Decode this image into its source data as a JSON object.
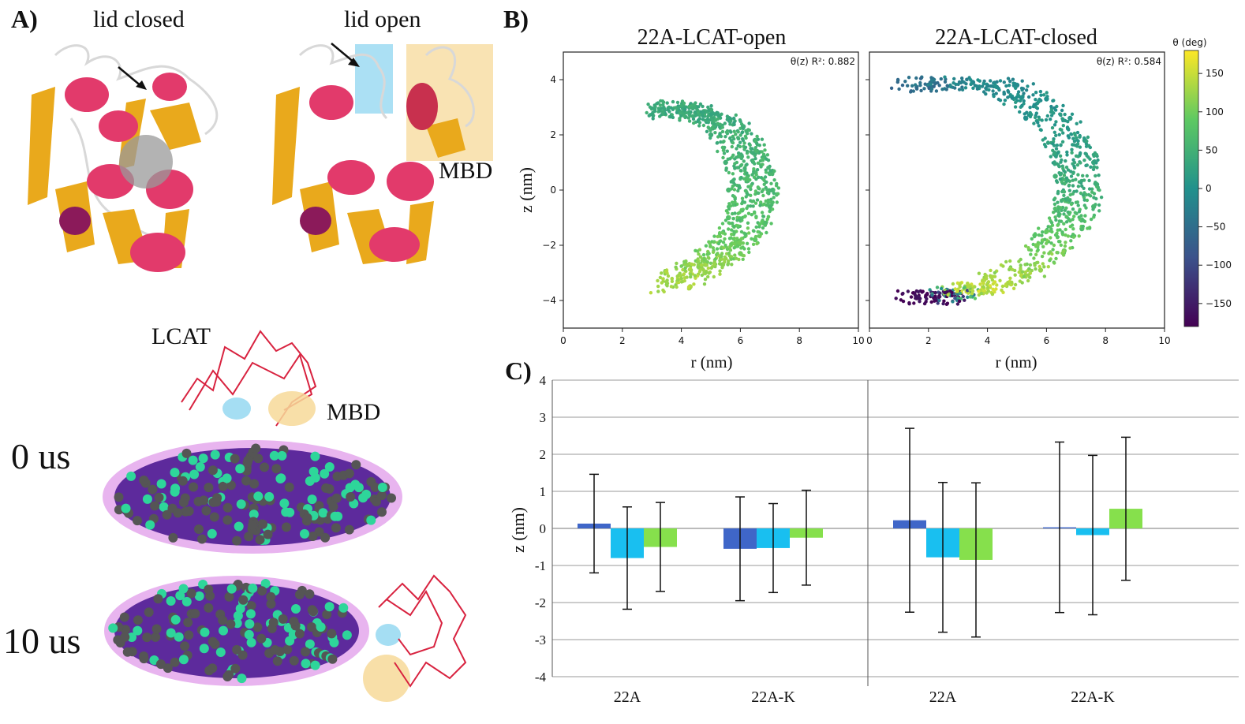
{
  "panel_a": {
    "label": "A)",
    "lid_closed": "lid closed",
    "lid_open": "lid open",
    "mbd_top": "MBD",
    "lcat": "LCAT",
    "mbd_mid": "MBD",
    "time0": "0 us",
    "time10": "10 us",
    "colors": {
      "helix": "#e23a6b",
      "sheet": "#e9a91c",
      "loop": "#d8d8d8",
      "lid": "#8fd6f0",
      "mbd": "#f7d999",
      "lcat_trace": "#d8223f",
      "lipid_purple": "#5d2a9c",
      "bead_green": "#2ed69a",
      "bead_gray": "#555555"
    }
  },
  "panel_b": {
    "label": "B)",
    "colorbar_title": "θ (deg)",
    "colorbar_ticks": [
      "150",
      "100",
      "50",
      "0",
      "−50",
      "−100",
      "−150"
    ],
    "chart_data": [
      {
        "type": "scatter",
        "title": "22A-LCAT-open",
        "annotation": "θ(z) R²: 0.882",
        "xlabel": "r (nm)",
        "ylabel": "z (nm)",
        "xlim": [
          0,
          10
        ],
        "ylim": [
          -5,
          5
        ],
        "xticks": [
          "0",
          "2",
          "4",
          "6",
          "8",
          "10"
        ],
        "yticks": [
          "4",
          "2",
          "0",
          "−2",
          "−4"
        ],
        "points": [
          {
            "r": 4.0,
            "z": 2.8,
            "theta": 35
          },
          {
            "r": 4.5,
            "z": 3.0,
            "theta": 40
          },
          {
            "r": 5.0,
            "z": 2.9,
            "theta": 45
          },
          {
            "r": 5.6,
            "z": 2.6,
            "theta": 40
          },
          {
            "r": 6.1,
            "z": 2.3,
            "theta": 45
          },
          {
            "r": 6.5,
            "z": 1.8,
            "theta": 50
          },
          {
            "r": 6.8,
            "z": 1.2,
            "theta": 55
          },
          {
            "r": 7.0,
            "z": 0.6,
            "theta": 60
          },
          {
            "r": 7.1,
            "z": 0.0,
            "theta": 65
          },
          {
            "r": 7.0,
            "z": -0.6,
            "theta": 70
          },
          {
            "r": 6.8,
            "z": -1.2,
            "theta": 80
          },
          {
            "r": 6.5,
            "z": -1.8,
            "theta": 90
          },
          {
            "r": 6.0,
            "z": -2.3,
            "theta": 100
          },
          {
            "r": 5.4,
            "z": -2.7,
            "theta": 115
          },
          {
            "r": 4.8,
            "z": -3.0,
            "theta": 125
          },
          {
            "r": 4.3,
            "z": -3.5,
            "theta": 135
          },
          {
            "r": 5.6,
            "z": 0.0,
            "theta": 60
          },
          {
            "r": 5.5,
            "z": 1.0,
            "theta": 50
          },
          {
            "r": 5.6,
            "z": -1.0,
            "theta": 75
          },
          {
            "r": 5.0,
            "z": 2.0,
            "theta": 45
          }
        ]
      },
      {
        "type": "scatter",
        "title": "22A-LCAT-closed",
        "annotation": "θ(z) R²: 0.584",
        "xlabel": "r (nm)",
        "ylabel": "z (nm)",
        "xlim": [
          0,
          10
        ],
        "ylim": [
          -5,
          5
        ],
        "xticks": [
          "0",
          "2",
          "4",
          "6",
          "8",
          "10"
        ],
        "yticks": [
          "4",
          "2",
          "0",
          "−2",
          "−4"
        ],
        "points": [
          {
            "r": 2.0,
            "z": 3.8,
            "theta": -60
          },
          {
            "r": 3.5,
            "z": 3.9,
            "theta": -20
          },
          {
            "r": 5.0,
            "z": 3.8,
            "theta": -10
          },
          {
            "r": 6.0,
            "z": 3.3,
            "theta": 0
          },
          {
            "r": 6.8,
            "z": 2.6,
            "theta": 10
          },
          {
            "r": 7.3,
            "z": 1.8,
            "theta": 20
          },
          {
            "r": 7.6,
            "z": 1.0,
            "theta": 30
          },
          {
            "r": 7.7,
            "z": 0.2,
            "theta": 45
          },
          {
            "r": 7.6,
            "z": -0.6,
            "theta": 60
          },
          {
            "r": 7.2,
            "z": -1.4,
            "theta": 80
          },
          {
            "r": 6.6,
            "z": -2.2,
            "theta": 100
          },
          {
            "r": 5.8,
            "z": -2.9,
            "theta": 120
          },
          {
            "r": 4.8,
            "z": -3.4,
            "theta": 140
          },
          {
            "r": 3.8,
            "z": -3.7,
            "theta": 150
          },
          {
            "r": 3.0,
            "z": -3.9,
            "theta": -170
          },
          {
            "r": 2.2,
            "z": -3.9,
            "theta": -175
          },
          {
            "r": 1.6,
            "z": -3.9,
            "theta": -178
          },
          {
            "r": 6.3,
            "z": 0.5,
            "theta": 50
          },
          {
            "r": 6.0,
            "z": -1.5,
            "theta": 100
          },
          {
            "r": 5.3,
            "z": 2.6,
            "theta": 0
          }
        ]
      }
    ]
  },
  "panel_c": {
    "label": "C)",
    "chart_data": {
      "type": "bar",
      "ylabel": "z (nm)",
      "ylim": [
        -4,
        4
      ],
      "yticks": [
        "4",
        "3",
        "2",
        "1",
        "0",
        "-1",
        "-2",
        "-3",
        "-4"
      ],
      "categories": [
        "22A",
        "22A-K",
        "22A",
        "22A-K"
      ],
      "series": [
        {
          "color": "#3f66c8",
          "values": [
            0.13,
            -0.55,
            0.22,
            0.03
          ],
          "err": [
            1.33,
            1.4,
            2.48,
            2.3
          ]
        },
        {
          "color": "#19bff0",
          "values": [
            -0.8,
            -0.53,
            -0.78,
            -0.18
          ],
          "err": [
            1.38,
            1.2,
            2.02,
            2.15
          ]
        },
        {
          "color": "#86e04c",
          "values": [
            -0.5,
            -0.25,
            -0.85,
            0.53
          ],
          "err": [
            1.2,
            1.28,
            2.08,
            1.93
          ]
        }
      ]
    }
  }
}
